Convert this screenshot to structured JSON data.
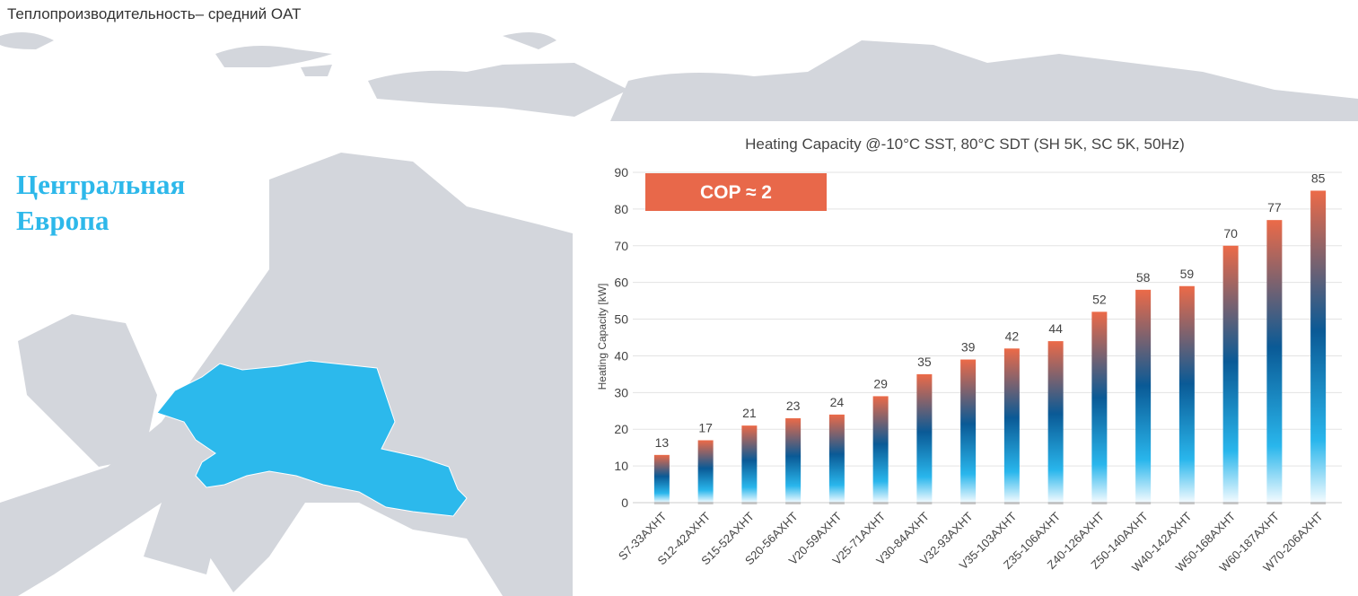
{
  "page": {
    "title": "Теплопроизводительность– средний OAT"
  },
  "map": {
    "region_line1": "Центральная",
    "region_line2": "Европа"
  },
  "colors": {
    "highlight": "#2cb9ec",
    "land": "#cfd2d8",
    "cop_box": "#e8684a",
    "bar_top": "#ec6a48",
    "bar_mid": "#0a5a96",
    "bar_low": "#29b6ec"
  },
  "cop_label": "COP ≈ 2",
  "chart_data": {
    "type": "bar",
    "title": "Heating Capacity @-10°C SST, 80°C SDT (SH 5K, SC 5K, 50Hz)",
    "xlabel": "",
    "ylabel": "Heating Capacity [kW]",
    "ylim": [
      0,
      90
    ],
    "yticks": [
      0,
      10,
      20,
      30,
      40,
      50,
      60,
      70,
      80,
      90
    ],
    "grid": true,
    "categories": [
      "S7-33AXHT",
      "S12-42AXHT",
      "S15-52AXHT",
      "S20-56AXHT",
      "V20-59AXHT",
      "V25-71AXHT",
      "V30-84AXHT",
      "V32-93AXHT",
      "V35-103AXHT",
      "Z35-106AXHT",
      "Z40-126AXHT",
      "Z50-140AXHT",
      "W40-142AXHT",
      "W50-168AXHT",
      "W60-187AXHT",
      "W70-206AXHT"
    ],
    "values": [
      13,
      17,
      21,
      23,
      24,
      29,
      35,
      39,
      42,
      44,
      52,
      58,
      59,
      70,
      77,
      85
    ]
  }
}
